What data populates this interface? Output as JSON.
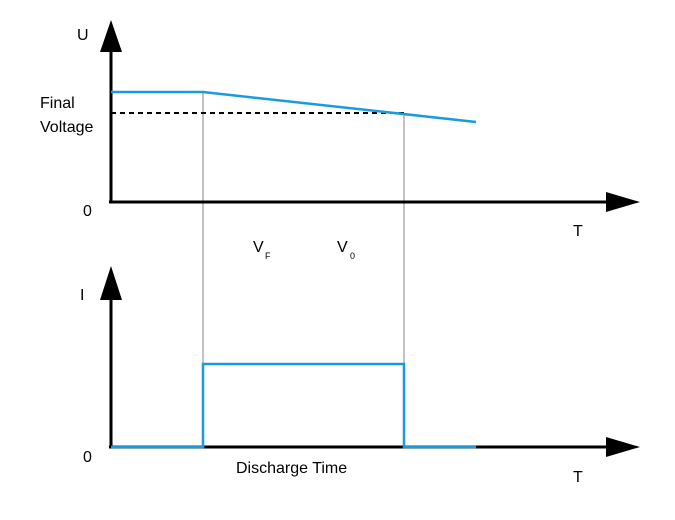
{
  "upper_graph": {
    "y_axis_label": "U",
    "x_axis_label": "T",
    "origin_label": "0",
    "final_voltage_label_line1": "Final",
    "final_voltage_label_line2": "Voltage"
  },
  "lower_graph": {
    "y_axis_label": "I",
    "x_axis_label": "T",
    "origin_label": "0",
    "discharge_time_label": "Discharge Time"
  },
  "markers": {
    "vf_main": "V",
    "vf_sub": "F",
    "v0_main": "V",
    "v0_sub": "0"
  },
  "colors": {
    "signal": "#1a9be0",
    "axis": "#000000",
    "guide": "#999999"
  }
}
